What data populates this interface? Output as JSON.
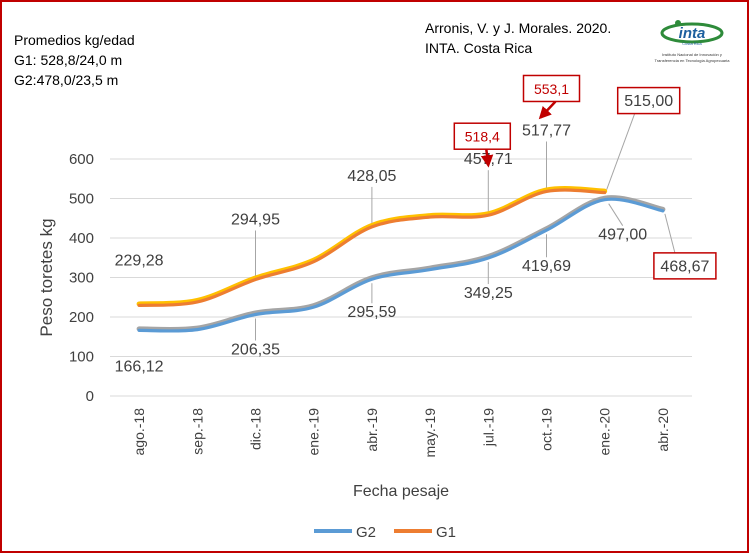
{
  "notes": {
    "averages_title": "Promedios kg/edad",
    "g1": "G1: 528,8/24,0 m",
    "g2": "G2:478,0/23,5 m",
    "source_line1": "Arronis, V. y J. Morales. 2020.",
    "source_line2": "INTA. Costa Rica"
  },
  "logo": {
    "name": "inta",
    "country": "Costa Rica",
    "caption1": "Instituto Nacional de Innovación y",
    "caption2": "Transferencia en Tecnología Agropecuaria"
  },
  "colors": {
    "g1": "#ed7d31",
    "g1_highlight": "#ffc000",
    "g2": "#5b9bd5",
    "g2_highlight": "#a5a5a5",
    "grid": "#d9d9d9",
    "callout": "#c00000",
    "text": "#404040"
  },
  "chart_data": {
    "type": "line",
    "title": "",
    "xlabel": "Fecha pesaje",
    "ylabel": "Peso toretes kg",
    "ylim": [
      0,
      600
    ],
    "yticks": [
      0,
      100,
      200,
      300,
      400,
      500,
      600
    ],
    "grid": true,
    "legend": "bottom",
    "categories": [
      "ago.-18",
      "sep.-18",
      "dic.-18",
      "ene.-19",
      "abr.-19",
      "may.-19",
      "jul.-19",
      "oct.-19",
      "ene.-20",
      "abr.-20"
    ],
    "series": [
      {
        "name": "G2",
        "values": [
          166.12,
          168,
          206.35,
          225,
          295.59,
          320,
          349.25,
          419.69,
          497.0,
          468.67
        ]
      },
      {
        "name": "G1",
        "values": [
          229.28,
          238,
          294.95,
          340,
          428.05,
          453,
          457.71,
          517.77,
          515.0,
          null
        ]
      }
    ],
    "data_labels": [
      {
        "id": "g2-ago18",
        "text": "166,12",
        "series": "G2",
        "category": "ago.-18"
      },
      {
        "id": "g2-dic18",
        "text": "206,35",
        "series": "G2",
        "category": "dic.-18"
      },
      {
        "id": "g2-abr19",
        "text": "295,59",
        "series": "G2",
        "category": "abr.-19"
      },
      {
        "id": "g2-jul19",
        "text": "349,25",
        "series": "G2",
        "category": "jul.-19"
      },
      {
        "id": "g2-oct19",
        "text": "419,69",
        "series": "G2",
        "category": "oct.-19"
      },
      {
        "id": "g2-ene20",
        "text": "497,00",
        "series": "G2",
        "category": "ene.-20"
      },
      {
        "id": "g1-ago18",
        "text": "229,28",
        "series": "G1",
        "category": "ago.-18"
      },
      {
        "id": "g1-dic18",
        "text": "294,95",
        "series": "G1",
        "category": "dic.-18"
      },
      {
        "id": "g1-abr19",
        "text": "428,05",
        "series": "G1",
        "category": "abr.-19"
      },
      {
        "id": "g1-jul19",
        "text": "457,71",
        "series": "G1",
        "category": "jul.-19"
      },
      {
        "id": "g1-oct19",
        "text": "517,77",
        "series": "G1",
        "category": "oct.-19"
      }
    ],
    "boxed_labels": [
      {
        "id": "g1-ene20-box",
        "text": "515,00",
        "series": "G1",
        "category": "ene.-20",
        "style": "dark"
      },
      {
        "id": "g2-abr20-box",
        "text": "468,67",
        "series": "G2",
        "category": "abr.-20",
        "style": "dark"
      },
      {
        "id": "g1-jul19-box",
        "text": "518,4",
        "series": "G1",
        "category": "jul.-19",
        "style": "red"
      },
      {
        "id": "g1-oct19-box",
        "text": "553,1",
        "series": "G1",
        "category": "oct.-19",
        "style": "red"
      }
    ]
  }
}
